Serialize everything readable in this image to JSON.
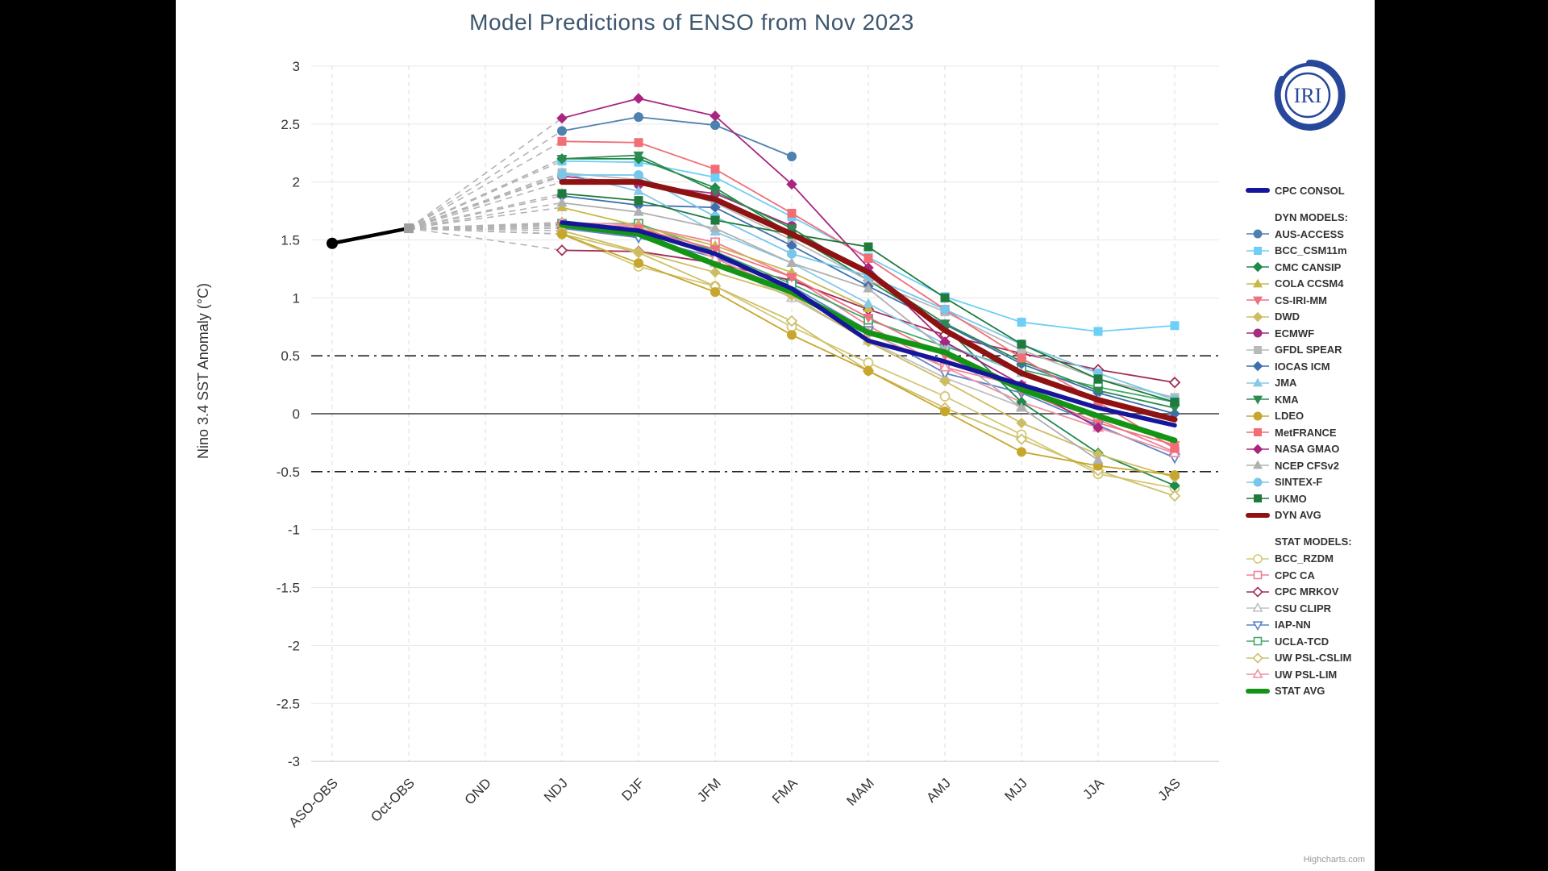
{
  "title": {
    "text": "Model Predictions of ENSO from Nov 2023",
    "color": "#3E576F"
  },
  "logo": {
    "text": "IRI",
    "color": "#27479b"
  },
  "credit": {
    "text": "Highcharts.com"
  },
  "legend": {
    "consol_label": "CPC CONSOL",
    "dyn_header": "DYN MODELS:",
    "stat_header": "STAT MODELS:"
  },
  "chart_data": {
    "type": "line",
    "title": "Model Predictions of ENSO from Nov 2023",
    "xlabel": "",
    "ylabel": "Nino 3.4 SST Anomaly (°C)",
    "ylim": [
      -3,
      3
    ],
    "ytick_step": 0.5,
    "grid": true,
    "legend_position": "right",
    "categories": [
      "ASO-OBS",
      "Oct-OBS",
      "OND",
      "NDJ",
      "DJF",
      "JFM",
      "FMA",
      "MAM",
      "AMJ",
      "MJJ",
      "JJA",
      "JAS"
    ],
    "reference_lines": {
      "zero": 0,
      "el_nino_threshold": 0.5,
      "la_nina_threshold": -0.5
    },
    "observations": {
      "name": "OBS",
      "color": "#000000",
      "marker_aso": "filled-black-circle",
      "marker_oct": "filled-gray-square",
      "values": [
        1.47,
        1.6,
        null,
        null,
        null,
        null,
        null,
        null,
        null,
        null,
        null,
        null
      ]
    },
    "forecast_fan": {
      "origin_category": "Oct-OBS",
      "origin_value": 1.6,
      "color": "#b3b3b3",
      "style": "dashed"
    },
    "series": [
      {
        "name": "CPC CONSOL",
        "group": "consol",
        "color": "#16169b",
        "marker": "none",
        "open": false,
        "width": 5.5,
        "values": [
          null,
          null,
          null,
          1.65,
          1.58,
          1.38,
          1.08,
          0.63,
          0.45,
          0.25,
          0.05,
          -0.1
        ]
      },
      {
        "name": "AUS-ACCESS",
        "group": "dyn",
        "color": "#4f81ae",
        "marker": "circle",
        "open": false,
        "width": 1.8,
        "values": [
          null,
          null,
          null,
          2.44,
          2.56,
          2.49,
          2.22,
          null,
          null,
          null,
          null,
          null
        ]
      },
      {
        "name": "BCC_CSM11m",
        "group": "dyn",
        "color": "#6dcff6",
        "marker": "square",
        "open": false,
        "width": 1.8,
        "values": [
          null,
          null,
          null,
          2.18,
          2.17,
          2.04,
          1.7,
          1.35,
          1.01,
          0.79,
          0.71,
          0.76
        ]
      },
      {
        "name": "CMC CANSIP",
        "group": "dyn",
        "color": "#1d8a4a",
        "marker": "diamond",
        "open": false,
        "width": 1.8,
        "values": [
          null,
          null,
          null,
          2.2,
          2.2,
          1.95,
          1.55,
          1.15,
          0.75,
          0.1,
          -0.34,
          -0.62
        ]
      },
      {
        "name": "COLA CCSM4",
        "group": "dyn",
        "color": "#c8b84b",
        "marker": "triangle",
        "open": false,
        "width": 1.8,
        "values": [
          null,
          null,
          null,
          1.78,
          1.62,
          1.45,
          1.22,
          0.91,
          null,
          null,
          null,
          null
        ]
      },
      {
        "name": "CS-IRI-MM",
        "group": "dyn",
        "color": "#ef7080",
        "marker": "triangle-down",
        "open": false,
        "width": 1.8,
        "values": [
          null,
          null,
          null,
          1.62,
          1.6,
          1.42,
          1.18,
          0.83,
          0.5,
          0.2,
          -0.08,
          -0.27
        ]
      },
      {
        "name": "DWD",
        "group": "dyn",
        "color": "#cdbd62",
        "marker": "diamond",
        "open": false,
        "width": 1.8,
        "values": [
          null,
          null,
          null,
          1.58,
          1.4,
          1.22,
          1.02,
          0.62,
          0.28,
          -0.08,
          -0.35,
          -0.55
        ]
      },
      {
        "name": "ECMWF",
        "group": "dyn",
        "color": "#a62c7e",
        "marker": "circle",
        "open": false,
        "width": 1.8,
        "values": [
          null,
          null,
          null,
          2.05,
          1.98,
          1.9,
          1.62,
          null,
          null,
          null,
          null,
          null
        ]
      },
      {
        "name": "GFDL SPEAR",
        "group": "dyn",
        "color": "#b9b9b9",
        "marker": "square",
        "open": false,
        "width": 1.8,
        "values": [
          null,
          null,
          null,
          2.08,
          2.02,
          1.82,
          1.5,
          1.15,
          0.88,
          0.55,
          0.3,
          0.14
        ]
      },
      {
        "name": "IOCAS ICM",
        "group": "dyn",
        "color": "#3f6fae",
        "marker": "diamond",
        "open": false,
        "width": 1.8,
        "values": [
          null,
          null,
          null,
          1.88,
          1.8,
          1.78,
          1.45,
          1.1,
          0.77,
          0.43,
          0.18,
          0.0
        ]
      },
      {
        "name": "JMA",
        "group": "dyn",
        "color": "#86c9e8",
        "marker": "triangle",
        "open": false,
        "width": 1.8,
        "values": [
          null,
          null,
          null,
          2.08,
          1.92,
          1.57,
          1.3,
          0.95,
          0.6,
          0.35,
          0.12,
          null
        ]
      },
      {
        "name": "KMA",
        "group": "dyn",
        "color": "#2e8b50",
        "marker": "triangle-down",
        "open": false,
        "width": 1.8,
        "values": [
          null,
          null,
          null,
          2.2,
          2.23,
          1.92,
          1.6,
          1.2,
          0.78,
          0.45,
          0.2,
          0.05
        ]
      },
      {
        "name": "LDEO",
        "group": "dyn",
        "color": "#c7a62e",
        "marker": "circle",
        "open": false,
        "width": 1.8,
        "values": [
          null,
          null,
          null,
          1.55,
          1.3,
          1.05,
          0.68,
          0.37,
          0.02,
          -0.33,
          -0.45,
          -0.53
        ]
      },
      {
        "name": "MetFRANCE",
        "group": "dyn",
        "color": "#f26e76",
        "marker": "square",
        "open": false,
        "width": 1.8,
        "values": [
          null,
          null,
          null,
          2.35,
          2.34,
          2.11,
          1.73,
          1.34,
          0.9,
          0.48,
          0.1,
          -0.3
        ]
      },
      {
        "name": "NASA GMAO",
        "group": "dyn",
        "color": "#a82580",
        "marker": "diamond",
        "open": false,
        "width": 1.8,
        "values": [
          null,
          null,
          null,
          2.55,
          2.72,
          2.57,
          1.98,
          1.26,
          0.62,
          0.25,
          -0.12,
          null
        ]
      },
      {
        "name": "NCEP CFSv2",
        "group": "dyn",
        "color": "#b0b0b0",
        "marker": "triangle",
        "open": false,
        "width": 1.8,
        "values": [
          null,
          null,
          null,
          1.82,
          1.74,
          1.6,
          1.3,
          1.08,
          0.55,
          0.05,
          -0.4,
          null
        ]
      },
      {
        "name": "SINTEX-F",
        "group": "dyn",
        "color": "#76c7ea",
        "marker": "circle",
        "open": false,
        "width": 1.8,
        "values": [
          null,
          null,
          null,
          2.06,
          2.06,
          1.7,
          1.38,
          1.19,
          0.9,
          0.6,
          0.35,
          0.12
        ]
      },
      {
        "name": "UKMO",
        "group": "dyn",
        "color": "#1f7a3c",
        "marker": "square",
        "open": false,
        "width": 1.8,
        "values": [
          null,
          null,
          null,
          1.9,
          1.84,
          1.67,
          1.55,
          1.44,
          1.0,
          0.6,
          0.3,
          0.1
        ]
      },
      {
        "name": "DYN AVG",
        "group": "dyn-avg",
        "color": "#8f1212",
        "marker": "none",
        "open": false,
        "width": 7,
        "values": [
          null,
          null,
          null,
          2.0,
          2.0,
          1.85,
          1.55,
          1.22,
          0.72,
          0.35,
          0.12,
          -0.05
        ]
      },
      {
        "name": "BCC_RZDM",
        "group": "stat",
        "color": "#d4c878",
        "marker": "circle",
        "open": true,
        "width": 1.8,
        "values": [
          null,
          null,
          null,
          1.55,
          1.27,
          1.1,
          0.75,
          0.44,
          0.15,
          -0.18,
          -0.52,
          -0.64
        ]
      },
      {
        "name": "CPC CA",
        "group": "stat",
        "color": "#ee8296",
        "marker": "square",
        "open": true,
        "width": 1.8,
        "values": [
          null,
          null,
          null,
          1.62,
          1.62,
          1.48,
          1.18,
          0.76,
          0.4,
          0.24,
          -0.05,
          -0.33
        ]
      },
      {
        "name": "CPC MRKOV",
        "group": "stat",
        "color": "#a12d57",
        "marker": "diamond",
        "open": true,
        "width": 1.8,
        "values": [
          null,
          null,
          null,
          1.41,
          1.4,
          1.3,
          1.15,
          0.9,
          0.68,
          0.52,
          0.38,
          0.27
        ]
      },
      {
        "name": "CSU CLIPR",
        "group": "stat",
        "color": "#c0c0c0",
        "marker": "triangle",
        "open": true,
        "width": 1.8,
        "values": [
          null,
          null,
          null,
          1.6,
          1.55,
          1.3,
          1.0,
          0.63,
          0.31,
          0.06,
          null,
          null
        ]
      },
      {
        "name": "IAP-NN",
        "group": "stat",
        "color": "#5b84c4",
        "marker": "triangle-down",
        "open": true,
        "width": 1.8,
        "values": [
          null,
          null,
          null,
          1.6,
          1.52,
          1.35,
          1.1,
          0.72,
          0.35,
          0.18,
          -0.1,
          -0.38
        ]
      },
      {
        "name": "UCLA-TCD",
        "group": "stat",
        "color": "#43a96e",
        "marker": "square",
        "open": true,
        "width": 1.8,
        "values": [
          null,
          null,
          null,
          1.64,
          1.64,
          1.4,
          1.12,
          0.81,
          0.58,
          0.38,
          0.23,
          0.1
        ]
      },
      {
        "name": "UW PSL-CSLIM",
        "group": "stat",
        "color": "#cfc06a",
        "marker": "diamond",
        "open": true,
        "width": 1.8,
        "values": [
          null,
          null,
          null,
          1.55,
          1.39,
          1.1,
          0.8,
          0.37,
          0.05,
          -0.22,
          -0.49,
          -0.71
        ]
      },
      {
        "name": "UW PSL-LIM",
        "group": "stat",
        "color": "#ef93a5",
        "marker": "triangle",
        "open": true,
        "width": 1.8,
        "values": [
          null,
          null,
          null,
          1.65,
          1.63,
          1.34,
          1.05,
          0.7,
          0.4,
          0.1,
          -0.12,
          -0.34
        ]
      },
      {
        "name": "STAT AVG",
        "group": "stat-avg",
        "color": "#149414",
        "marker": "none",
        "open": false,
        "width": 7,
        "values": [
          null,
          null,
          null,
          1.63,
          1.55,
          1.29,
          1.05,
          0.7,
          0.53,
          0.21,
          -0.02,
          -0.23
        ]
      }
    ]
  }
}
